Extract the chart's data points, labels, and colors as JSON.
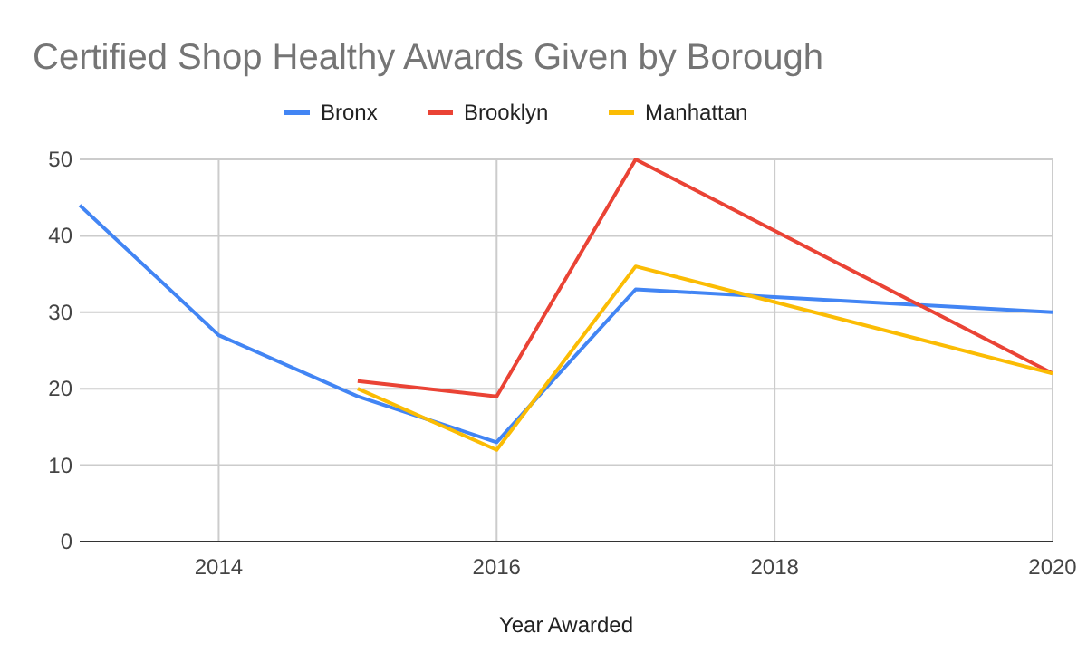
{
  "chart_data": {
    "type": "line",
    "title": "Certified Shop Healthy Awards Given by Borough",
    "xlabel": "Year Awarded",
    "xlim": [
      2013,
      2020
    ],
    "xticks": [
      2014,
      2016,
      2018,
      2020
    ],
    "ylim": [
      0,
      50
    ],
    "yticks": [
      0,
      10,
      20,
      30,
      40,
      50
    ],
    "grid": true,
    "legend": "top",
    "marker": "none",
    "series": [
      {
        "name": "Bronx",
        "color": "#4285f4",
        "x": [
          2013,
          2014,
          2015,
          2016,
          2017,
          2018,
          2020
        ],
        "values": [
          44,
          27,
          19,
          13,
          33,
          32,
          30
        ]
      },
      {
        "name": "Brooklyn",
        "color": "#ea4335",
        "x": [
          2015,
          2016,
          2017,
          2020
        ],
        "values": [
          21,
          19,
          50,
          22
        ]
      },
      {
        "name": "Manhattan",
        "color": "#fbbc04",
        "x": [
          2015,
          2016,
          2017,
          2020
        ],
        "values": [
          20,
          12,
          36,
          22
        ]
      }
    ]
  }
}
